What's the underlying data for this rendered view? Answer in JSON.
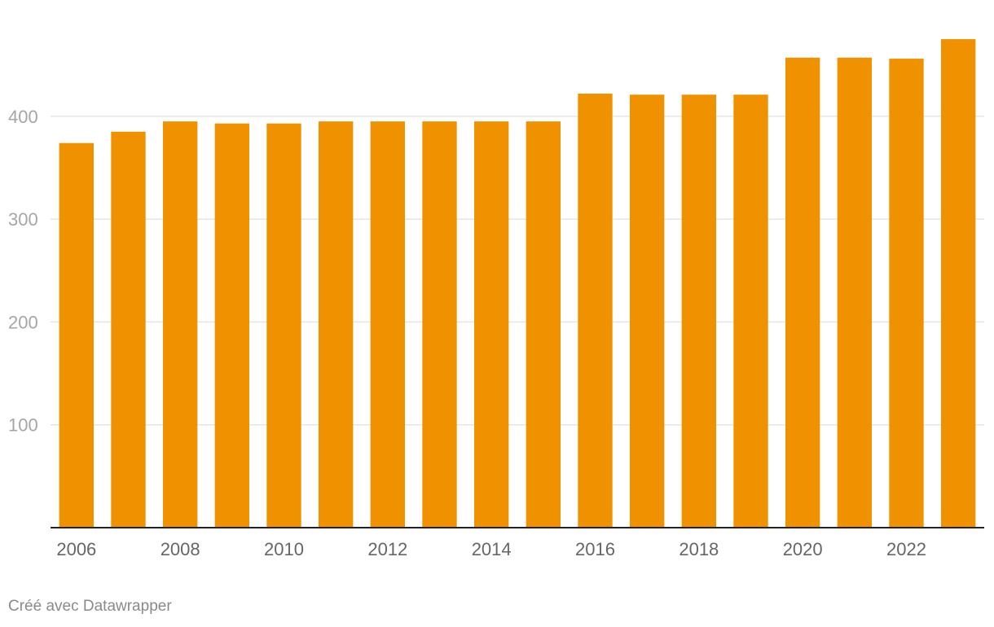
{
  "chart_data": {
    "type": "bar",
    "categories": [
      "2006",
      "2007",
      "2008",
      "2009",
      "2010",
      "2011",
      "2012",
      "2013",
      "2014",
      "2015",
      "2016",
      "2017",
      "2018",
      "2019",
      "2020",
      "2021",
      "2022",
      "2023"
    ],
    "values": [
      374,
      385,
      395,
      393,
      393,
      395,
      395,
      395,
      395,
      395,
      422,
      421,
      421,
      421,
      457,
      457,
      456,
      475
    ],
    "x_tick_labels": [
      "2006",
      "2008",
      "2010",
      "2012",
      "2014",
      "2016",
      "2018",
      "2020",
      "2022"
    ],
    "y_ticks": [
      100,
      200,
      300,
      400
    ],
    "ylim": [
      0,
      475
    ],
    "grid": true,
    "title": "",
    "xlabel": "",
    "ylabel": "",
    "colors": {
      "bar": "#f09100",
      "grid": "#e5e5e5",
      "axis": "#222222",
      "tick_text_y": "#a6a6a6",
      "tick_text_x": "#666666"
    }
  },
  "footer": {
    "credit": "Créé avec Datawrapper"
  }
}
